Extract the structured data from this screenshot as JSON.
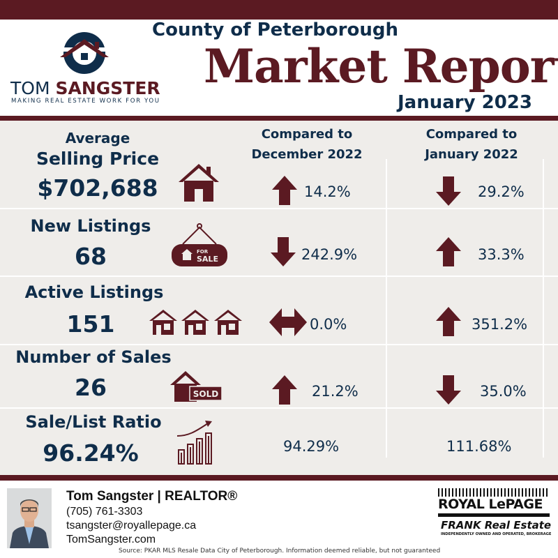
{
  "header": {
    "county": "County of Peterborough",
    "title": "Market Report",
    "period": "January 2023"
  },
  "logo": {
    "name_first": "TOM",
    "name_last": "SANGSTER",
    "tagline": "MAKING REAL ESTATE WORK FOR YOU"
  },
  "columns": {
    "prev_month": [
      "Compared to",
      "December 2022"
    ],
    "prev_year": [
      "Compared to",
      "January 2022"
    ]
  },
  "rows": [
    {
      "label": [
        "Average",
        "Selling Price"
      ],
      "value": "$702,688",
      "icon": "house-icon",
      "vs_prev_month": {
        "direction": "up",
        "text": "14.2%"
      },
      "vs_prev_year": {
        "direction": "down",
        "text": "29.2%"
      }
    },
    {
      "label": [
        "New Listings"
      ],
      "value": "68",
      "icon": "for-sale-sign-icon",
      "sign_small": "FOR",
      "sign_big": "SALE",
      "vs_prev_month": {
        "direction": "down",
        "text": "242.9%"
      },
      "vs_prev_year": {
        "direction": "up",
        "text": "33.3%"
      }
    },
    {
      "label": [
        "Active Listings"
      ],
      "value": "151",
      "icon": "houses-icon",
      "vs_prev_month": {
        "direction": "both",
        "text": "0.0%"
      },
      "vs_prev_year": {
        "direction": "up",
        "text": "351.2%"
      }
    },
    {
      "label": [
        "Number of Sales"
      ],
      "value": "26",
      "icon": "sold-house-icon",
      "sold_text": "SOLD",
      "vs_prev_month": {
        "direction": "up",
        "text": "21.2%"
      },
      "vs_prev_year": {
        "direction": "down",
        "text": "35.0%"
      }
    },
    {
      "label": [
        "Sale/List Ratio"
      ],
      "value": "96.24%",
      "icon": "growth-chart-icon",
      "vs_prev_month": {
        "direction": "none",
        "text": "94.29%"
      },
      "vs_prev_year": {
        "direction": "none",
        "text": "111.68%"
      }
    }
  ],
  "agent": {
    "name_line": "Tom Sangster | REALTOR®",
    "phone": "(705) 761-3303",
    "email": "tsangster@royallepage.ca",
    "website": "TomSangster.com"
  },
  "brokerage": {
    "brand": "ROYAL LePAGE",
    "office": "FRANK Real Estate",
    "office_sub": "INDEPENDENTLY OWNED AND OPERATED, BROKERAGE"
  },
  "source": "Source: PKAR MLS Resale Data City of Peterborough. Information deemed reliable, but not guaranteed",
  "colors": {
    "maroon": "#5b1a22",
    "navy": "#0f2d4a",
    "panel": "#efedea"
  }
}
